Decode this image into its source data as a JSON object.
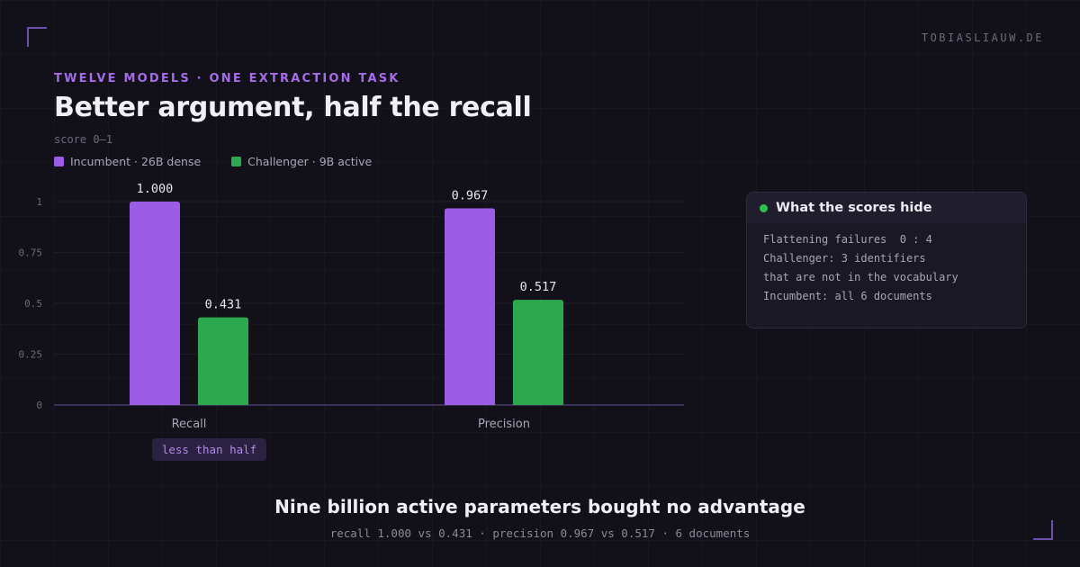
{
  "site": "TOBIASLIAUW.DE",
  "kicker": "TWELVE MODELS · ONE EXTRACTION TASK",
  "title": "Better argument, half the recall",
  "unit": "score 0–1",
  "colors": {
    "incumbent": "#9b5de5",
    "challenger": "#2ea84e",
    "axis": "#3a2f55",
    "grid": "#1f1d29",
    "tick": "#6c6a78",
    "value_label": "#e8e6ef"
  },
  "chart_data": {
    "type": "bar",
    "categories": [
      "Recall",
      "Precision"
    ],
    "series": [
      {
        "name": "Incumbent · 26B dense",
        "color": "#9b5de5",
        "values": [
          1.0,
          0.967
        ],
        "labels": [
          "1.000",
          "0.967"
        ]
      },
      {
        "name": "Challenger · 9B active",
        "color": "#2ea84e",
        "values": [
          0.431,
          0.517
        ],
        "labels": [
          "0.431",
          "0.517"
        ]
      }
    ],
    "ylim": [
      0,
      1
    ],
    "yticks": [
      0,
      0.25,
      0.5,
      0.75,
      1
    ],
    "ytick_labels": [
      "0",
      "0.25",
      "0.5",
      "0.75",
      "1"
    ],
    "ylabel": "score 0–1",
    "legend_position": "top-left",
    "grid": true
  },
  "annotation": {
    "label": "less than half"
  },
  "note": {
    "icon": "green-dot-icon",
    "title": "What the scores hide",
    "lines": [
      "Flattening failures  0 : 4",
      "Challenger: 3 identifiers",
      "that are not in the vocabulary",
      "Incumbent: all 6 documents"
    ]
  },
  "footer": {
    "headline": "Nine billion active parameters bought no advantage",
    "subline": "recall 1.000 vs 0.431 · precision 0.967 vs 0.517 · 6 documents"
  }
}
